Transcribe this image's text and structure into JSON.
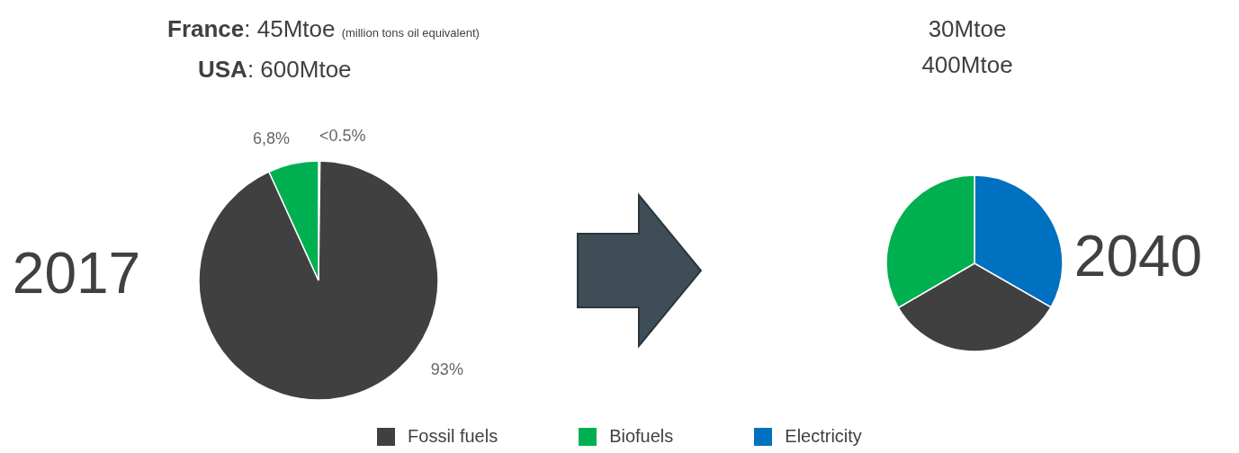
{
  "chart_data": [
    {
      "type": "pie",
      "title": "2017",
      "annotations": [
        "France: 45Mtoe (million tons oil equivalent)",
        "USA: 600Mtoe"
      ],
      "categories": [
        "Electricity",
        "Fossil fuels",
        "Biofuels"
      ],
      "values": [
        0.2,
        93,
        6.8
      ],
      "colors": [
        "#0070c0",
        "#404040",
        "#00b050"
      ],
      "value_labels": [
        "<0.5%",
        "93%",
        "6,8%"
      ],
      "legend": "bottom"
    },
    {
      "type": "pie",
      "title": "2040",
      "annotations": [
        "30Mtoe",
        "400Mtoe"
      ],
      "categories": [
        null,
        null,
        null
      ],
      "values": [
        33.3,
        33.3,
        33.4
      ],
      "colors": [
        "#0070c0",
        "#404040",
        "#00b050"
      ]
    }
  ]
}
